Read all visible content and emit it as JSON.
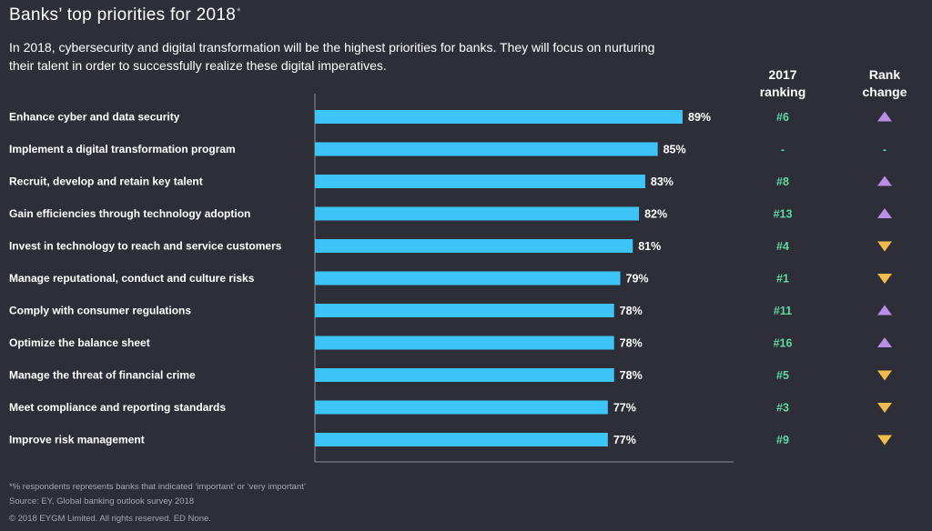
{
  "header": {
    "title": "Banks’ top priorities for 2018",
    "title_mark": "*",
    "subtitle": "In 2018, cybersecurity and digital transformation will be the highest priorities for banks. They will focus on nurturing their talent in order to successfully realize these digital imperatives."
  },
  "columns": {
    "rank_line1": "2017",
    "rank_line2": "ranking",
    "change_line1": "Rank",
    "change_line2": "change"
  },
  "chart_data": {
    "type": "bar",
    "orientation": "horizontal",
    "categories": [
      "Enhance cyber and data security",
      "Implement a digital transformation program",
      "Recruit, develop and retain key talent",
      "Gain efficiencies through technology adoption",
      "Invest in technology to reach and service customers",
      "Manage reputational, conduct and culture risks",
      "Comply with consumer regulations",
      "Optimize the balance sheet",
      "Manage the threat of financial crime",
      "Meet compliance and reporting standards",
      "Improve risk management"
    ],
    "values": [
      89,
      85,
      83,
      82,
      81,
      79,
      78,
      78,
      78,
      77,
      77
    ],
    "value_labels": [
      "89%",
      "85%",
      "83%",
      "82%",
      "81%",
      "79%",
      "78%",
      "78%",
      "78%",
      "77%",
      "77%"
    ],
    "rank_2017": [
      "#6",
      "-",
      "#8",
      "#13",
      "#4",
      "#1",
      "#11",
      "#16",
      "#5",
      "#3",
      "#9"
    ],
    "rank_change": [
      "up",
      "none",
      "up",
      "up",
      "down",
      "down",
      "up",
      "up",
      "down",
      "down",
      "down"
    ],
    "rank_change_none_label": "-",
    "xlim": [
      30,
      89
    ],
    "colors": {
      "bar": "#3dc5f7",
      "rank_text": "#60d8a4",
      "up": "#b98ee8",
      "down": "#f2bc4c",
      "axis": "#8d8d98"
    }
  },
  "footer": {
    "note": "*% respondents represents banks that indicated ‘important’ or ‘very important’",
    "source": "Source: EY, Global banking outlook survey 2018",
    "copyright": "© 2018 EYGM Limited. All rights reserved. ED None."
  }
}
